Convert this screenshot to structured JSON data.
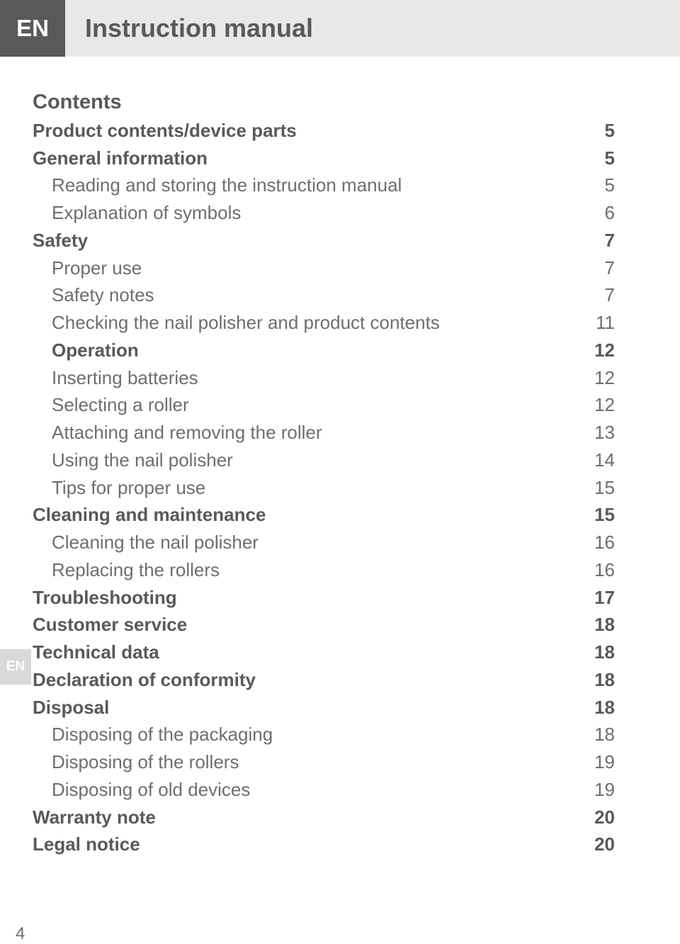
{
  "header": {
    "lang": "EN",
    "title": "Instruction manual"
  },
  "side_tab": "EN",
  "contents_heading": "Contents",
  "toc": [
    {
      "label": "Product contents/device parts",
      "page": "5",
      "level": 1
    },
    {
      "label": "General information",
      "page": "5",
      "level": 1
    },
    {
      "label": "Reading and storing the instruction manual",
      "page": "5",
      "level": 2
    },
    {
      "label": "Explanation of symbols",
      "page": "6",
      "level": 2
    },
    {
      "label": "Safety",
      "page": "7",
      "level": 1
    },
    {
      "label": "Proper use",
      "page": "7",
      "level": 2
    },
    {
      "label": "Safety notes",
      "page": "7",
      "level": 2
    },
    {
      "label": "Checking the nail polisher and product contents",
      "page": "11",
      "level": 2
    },
    {
      "label": "Operation",
      "page": "12",
      "level": 2,
      "bold": true
    },
    {
      "label": "Inserting batteries",
      "page": "12",
      "level": 2
    },
    {
      "label": "Selecting a roller",
      "page": "12",
      "level": 2
    },
    {
      "label": "Attaching and removing the roller",
      "page": "13",
      "level": 2
    },
    {
      "label": "Using the nail polisher",
      "page": "14",
      "level": 2
    },
    {
      "label": "Tips for proper use",
      "page": "15",
      "level": 2
    },
    {
      "label": "Cleaning and maintenance",
      "page": "15",
      "level": 1
    },
    {
      "label": "Cleaning the nail polisher",
      "page": "16",
      "level": 2
    },
    {
      "label": "Replacing the rollers",
      "page": "16",
      "level": 2
    },
    {
      "label": "Troubleshooting",
      "page": "17",
      "level": 1
    },
    {
      "label": "Customer service",
      "page": "18",
      "level": 1
    },
    {
      "label": "Technical data",
      "page": "18",
      "level": 1
    },
    {
      "label": "Declaration of conformity",
      "page": "18",
      "level": 1
    },
    {
      "label": "Disposal",
      "page": "18",
      "level": 1
    },
    {
      "label": "Disposing of the packaging",
      "page": "18",
      "level": 2
    },
    {
      "label": "Disposing of the rollers",
      "page": "19",
      "level": 2
    },
    {
      "label": "Disposing of old devices",
      "page": "19",
      "level": 2
    },
    {
      "label": "Warranty note",
      "page": "20",
      "level": 1
    },
    {
      "label": "Legal notice",
      "page": "20",
      "level": 1
    }
  ],
  "page_number": "4",
  "colors": {
    "header_bg": "#e8e8e8",
    "lang_box_bg": "#58595b",
    "side_tab_bg": "#d9d9d9",
    "text": "#58595b",
    "text_light": "#6d6e71"
  }
}
